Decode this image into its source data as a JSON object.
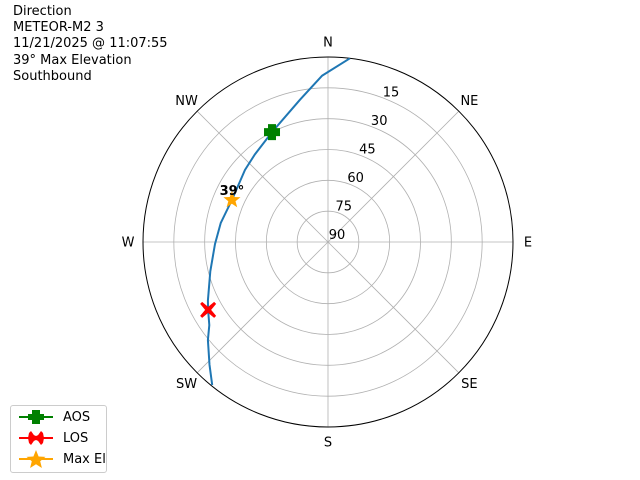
{
  "title_lines": [
    "Direction",
    "METEOR-M2 3",
    "11/21/2025 @ 11:07:55",
    "39° Max Elevation",
    "Southbound"
  ],
  "chart_data": {
    "type": "polar-line",
    "theta_direction": "clockwise",
    "theta_zero": "N",
    "direction_labels": [
      {
        "label": "N",
        "az": 0
      },
      {
        "label": "NE",
        "az": 45
      },
      {
        "label": "E",
        "az": 90
      },
      {
        "label": "SE",
        "az": 135
      },
      {
        "label": "S",
        "az": 180
      },
      {
        "label": "SW",
        "az": 225
      },
      {
        "label": "W",
        "az": 270
      },
      {
        "label": "NW",
        "az": 315
      }
    ],
    "radial_axis": "elevation (inverted, 90 at center)",
    "elevation_ticks": [
      "15",
      "30",
      "45",
      "60",
      "75",
      "90"
    ],
    "elevation_tick_values": [
      15,
      30,
      45,
      60,
      75,
      90
    ],
    "grid": true,
    "track": {
      "color": "#1f77b4",
      "points": [
        {
          "az": 6.8,
          "el": 0
        },
        {
          "az": 358,
          "el": 9
        },
        {
          "az": 348.8,
          "el": 19.5
        },
        {
          "az": 333,
          "el": 30
        },
        {
          "az": 320,
          "el": 34.5
        },
        {
          "az": 311,
          "el": 36.5
        },
        {
          "az": 293.6,
          "el": 39
        },
        {
          "az": 280,
          "el": 37
        },
        {
          "az": 269,
          "el": 35
        },
        {
          "az": 256,
          "el": 31
        },
        {
          "az": 244,
          "el": 25
        },
        {
          "az": 240.5,
          "el": 23
        },
        {
          "az": 235,
          "el": 19.5
        },
        {
          "az": 230.8,
          "el": 14.6
        },
        {
          "az": 224,
          "el": 7
        },
        {
          "az": 219,
          "el": 0.5
        }
      ]
    },
    "markers": [
      {
        "name": "AOS",
        "az": 333,
        "el": 30,
        "color": "#008000",
        "shape": "plus"
      },
      {
        "name": "LOS",
        "az": 240.5,
        "el": 23,
        "color": "#ff0000",
        "shape": "x"
      },
      {
        "name": "Max El",
        "az": 293.6,
        "el": 39,
        "color": "#ffa500",
        "shape": "star"
      }
    ],
    "annotation": "39°",
    "legend_position": "lower-left"
  }
}
